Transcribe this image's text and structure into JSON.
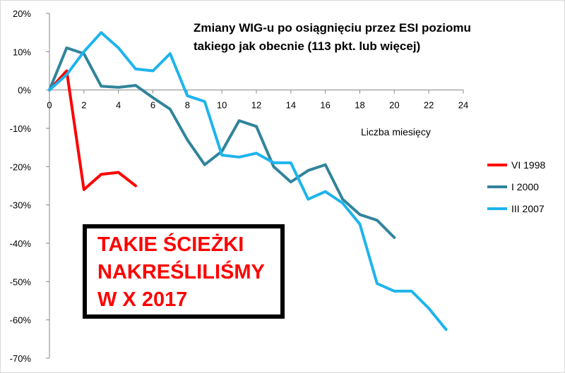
{
  "chart_data": {
    "type": "line",
    "title_lines": [
      "Zmiany WIG-u po osiągnięciu przez ESI poziomu",
      "takiego jak obecnie (113 pkt. lub więcej)"
    ],
    "xlabel": "Liczba miesięcy",
    "ylabel": "",
    "xlim": [
      0,
      24
    ],
    "ylim": [
      -70,
      20
    ],
    "x_ticks": [
      0,
      2,
      4,
      6,
      8,
      10,
      12,
      14,
      16,
      18,
      20,
      22,
      24
    ],
    "y_ticks": [
      20,
      10,
      0,
      -10,
      -20,
      -30,
      -40,
      -50,
      -60,
      -70
    ],
    "y_tick_labels": [
      "20%",
      "10%",
      "0%",
      "-10%",
      "-20%",
      "-30%",
      "-40%",
      "-50%",
      "-60%",
      "-70%"
    ],
    "grid": false,
    "legend_position": "right",
    "series": [
      {
        "name": "VI 1998",
        "color": "#ff0000",
        "x": [
          0,
          1,
          2,
          3,
          4,
          5
        ],
        "y": [
          0,
          5,
          -26,
          -22,
          -21.5,
          -25
        ]
      },
      {
        "name": "I 2000",
        "color": "#31849b",
        "x": [
          0,
          1,
          2,
          3,
          4,
          5,
          6,
          7,
          8,
          9,
          10,
          11,
          12,
          13,
          14,
          15,
          16,
          17,
          18,
          19,
          20
        ],
        "y": [
          0,
          11,
          9.5,
          1,
          0.7,
          1.2,
          -2,
          -5,
          -13,
          -19.5,
          -16,
          -8,
          -9.5,
          -20,
          -24,
          -21,
          -19.5,
          -28.5,
          -32.5,
          -34,
          -38.5
        ]
      },
      {
        "name": "III 2007",
        "color": "#1eb4ed",
        "x": [
          0,
          1,
          2,
          3,
          4,
          5,
          6,
          7,
          8,
          9,
          10,
          11,
          12,
          13,
          14,
          15,
          16,
          17,
          18,
          19,
          20,
          21,
          22,
          23
        ],
        "y": [
          0,
          4,
          10,
          15,
          11,
          5.5,
          5,
          9.5,
          -1.5,
          -3,
          -17,
          -17.5,
          -16.5,
          -19,
          -19,
          -28.5,
          -26.5,
          -29.5,
          -35,
          -50.5,
          -52.5,
          -52.5,
          -57,
          -62.5
        ]
      }
    ]
  },
  "annotation": {
    "lines": [
      "TAKIE ŚCIEŻKI",
      "NAKREŚLILIŚMY",
      "W X 2017"
    ],
    "color": "#ff0000"
  }
}
